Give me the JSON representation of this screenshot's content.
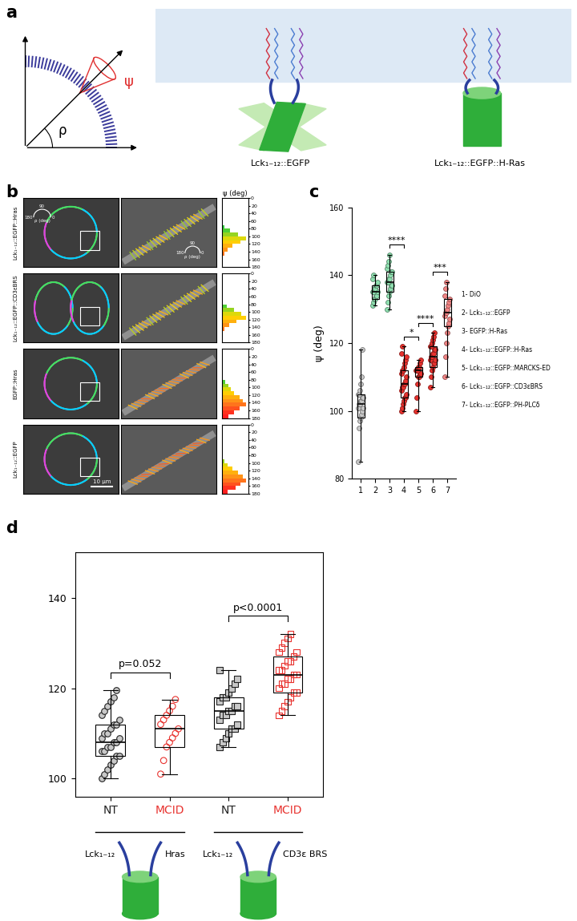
{
  "panel_labels": [
    "a",
    "b",
    "c",
    "d"
  ],
  "panel_a": {
    "angle_labels": {
      "rho": "ρ",
      "psi": "ψ"
    },
    "constructs": [
      "Lck₁₋₁₂::EGFP",
      "Lck₁₋₁₂::EGFP::H-Ras"
    ]
  },
  "panel_b": {
    "hist_title": "ψ (deg)",
    "hist_bins": [
      0,
      10,
      20,
      30,
      40,
      50,
      60,
      70,
      80,
      90,
      100,
      110,
      120,
      130,
      140,
      150,
      160,
      170,
      180
    ],
    "hist_ticks": [
      0,
      20,
      40,
      60,
      80,
      100,
      120,
      140,
      160,
      180
    ],
    "inset_labels": {
      "top": "90",
      "left": "180",
      "unit": "ρ (deg)",
      "right": "0"
    },
    "scale_bar": "10 μm",
    "rows": [
      {
        "label": "Lck₁₋₁₂::EGFP::Hras",
        "histogram": [
          0,
          0,
          0,
          0,
          0,
          0,
          0,
          1,
          3,
          6,
          9,
          7,
          4,
          2,
          1,
          0,
          0,
          0
        ]
      },
      {
        "label": "Lck₁₋₁₂::EGFP::CD3εBRS",
        "histogram": [
          0,
          0,
          0,
          0,
          0,
          0,
          0,
          0,
          2,
          5,
          8,
          10,
          6,
          3,
          1,
          0,
          0,
          0
        ]
      },
      {
        "label": "EGFP::Hras",
        "histogram": [
          0,
          0,
          0,
          0,
          0,
          0,
          0,
          0,
          1,
          2,
          3,
          4,
          6,
          7,
          8,
          6,
          4,
          2
        ]
      },
      {
        "label": "Lck₁₋₁₂::EGFP",
        "histogram": [
          0,
          0,
          0,
          0,
          0,
          0,
          0,
          0,
          0,
          1,
          2,
          4,
          6,
          8,
          9,
          7,
          5,
          2
        ]
      }
    ]
  },
  "chart_data": [
    {
      "type": "box",
      "categories": [
        "1",
        "2",
        "3",
        "4",
        "5",
        "6",
        "7"
      ],
      "ylabel": "ψ (deg)",
      "ylim": [
        80,
        160
      ],
      "yticks": [
        80,
        100,
        120,
        140,
        160
      ],
      "series": [
        {
          "name": "1- DiO",
          "color": "#c8c8c8",
          "marker": "circle",
          "box": {
            "min": 85,
            "q1": 98,
            "median": 102,
            "q3": 105,
            "max": 118
          },
          "points": [
            85,
            95,
            97,
            98,
            99,
            100,
            101,
            101,
            102,
            102,
            103,
            103,
            104,
            104,
            105,
            105,
            106,
            108,
            110,
            118
          ]
        },
        {
          "name": "2- Lck₁₋₁₂::EGFP",
          "color": "#8fe0b0",
          "marker": "circle",
          "box": {
            "min": 131,
            "q1": 133,
            "median": 135,
            "q3": 137,
            "max": 140
          },
          "points": [
            131,
            132,
            133,
            133,
            134,
            134,
            135,
            135,
            135,
            136,
            136,
            137,
            137,
            138,
            139,
            140
          ]
        },
        {
          "name": "3- EGFP::H-Ras",
          "color": "#8fe0b0",
          "marker": "circle",
          "box": {
            "min": 130,
            "q1": 135,
            "median": 138,
            "q3": 141,
            "max": 146
          },
          "points": [
            130,
            132,
            134,
            135,
            136,
            137,
            137,
            138,
            138,
            139,
            139,
            140,
            141,
            141,
            142,
            143,
            144,
            146
          ]
        },
        {
          "name": "4- Lck₁₋₁₂::EGFP::H-Ras",
          "color": "#e8322e",
          "marker": "circle",
          "box": {
            "min": 100,
            "q1": 104,
            "median": 108,
            "q3": 112,
            "max": 119
          },
          "points": [
            100,
            101,
            102,
            103,
            104,
            104,
            105,
            106,
            107,
            107,
            108,
            108,
            109,
            110,
            111,
            112,
            112,
            113,
            114,
            115,
            116,
            117,
            119
          ]
        },
        {
          "name": "5- Lck₁₋₁₂::EGFP::MARCKS-ED",
          "color": "#e8322e",
          "marker": "circle",
          "box": {
            "min": 100,
            "q1": 110,
            "median": 112,
            "q3": 113,
            "max": 115
          },
          "points": [
            100,
            104,
            108,
            110,
            110,
            111,
            111,
            112,
            112,
            112,
            113,
            113,
            114,
            115
          ]
        },
        {
          "name": "6- Lck₁₋₁₂::EGFP::CD3εBRS",
          "color": "#e8322e",
          "marker": "circle",
          "box": {
            "min": 107,
            "q1": 113,
            "median": 116,
            "q3": 119,
            "max": 123
          },
          "points": [
            107,
            110,
            112,
            113,
            114,
            114,
            115,
            115,
            116,
            116,
            117,
            117,
            118,
            118,
            119,
            119,
            120,
            121,
            122,
            123
          ]
        },
        {
          "name": "7- Lck₁₋₁₂::EGFP::PH-PLCδ",
          "color": "#f28585",
          "marker": "circle",
          "box": {
            "min": 110,
            "q1": 125,
            "median": 129,
            "q3": 133,
            "max": 138
          },
          "points": [
            110,
            116,
            120,
            123,
            125,
            126,
            127,
            128,
            129,
            129,
            130,
            131,
            132,
            133,
            134,
            136,
            138
          ]
        }
      ],
      "significance": [
        {
          "from": "3",
          "to": "4",
          "label": "****"
        },
        {
          "from": "4",
          "to": "5",
          "label": "*"
        },
        {
          "from": "5",
          "to": "6",
          "label": "****"
        },
        {
          "from": "6",
          "to": "7",
          "label": "***"
        }
      ]
    },
    {
      "type": "box",
      "categories": [
        "NT",
        "MCID",
        "NT",
        "MCID"
      ],
      "ylim": [
        96,
        150
      ],
      "yticks": [
        100,
        120,
        140
      ],
      "series": [
        {
          "color": "#222222",
          "marker": "circle",
          "box": {
            "min": 100,
            "q1": 105,
            "median": 108,
            "q3": 112,
            "max": 119.5
          },
          "points": [
            100,
            101,
            102,
            103,
            104,
            105,
            105,
            106,
            106,
            107,
            107,
            108,
            108,
            109,
            109,
            110,
            110,
            111,
            112,
            112,
            113,
            114,
            115,
            116,
            117,
            118,
            119.5
          ]
        },
        {
          "color": "#e8322e",
          "marker": "open_circle",
          "box": {
            "min": 101,
            "q1": 107,
            "median": 111,
            "q3": 114,
            "max": 117.5
          },
          "points": [
            101,
            104,
            107,
            108,
            109,
            110,
            111,
            112,
            113,
            114,
            115,
            116,
            117.5
          ]
        },
        {
          "color": "#222222",
          "marker": "square",
          "box": {
            "min": 107,
            "q1": 111,
            "median": 115,
            "q3": 118,
            "max": 124
          },
          "points": [
            107,
            108,
            109,
            110,
            111,
            111,
            112,
            113,
            114,
            114,
            115,
            115,
            116,
            116,
            117,
            118,
            118,
            119,
            120,
            121,
            122,
            124
          ]
        },
        {
          "color": "#e8322e",
          "marker": "open_square",
          "box": {
            "min": 114,
            "q1": 119,
            "median": 123,
            "q3": 127,
            "max": 132
          },
          "points": [
            114,
            115,
            116,
            117,
            118,
            119,
            119,
            120,
            121,
            121,
            122,
            122,
            123,
            123,
            124,
            124,
            125,
            126,
            126,
            127,
            128,
            128,
            129,
            130,
            131,
            132
          ]
        }
      ],
      "comparisons": [
        {
          "from": 0,
          "to": 1,
          "label": "p=0.052"
        },
        {
          "from": 2,
          "to": 3,
          "label": "p<0.0001"
        }
      ],
      "groups": [
        {
          "labels": [
            "Lck₁₋₁₂",
            "Hras"
          ]
        },
        {
          "labels": [
            "Lck₁₋₁₂",
            "CD3ε BRS"
          ]
        }
      ]
    }
  ]
}
